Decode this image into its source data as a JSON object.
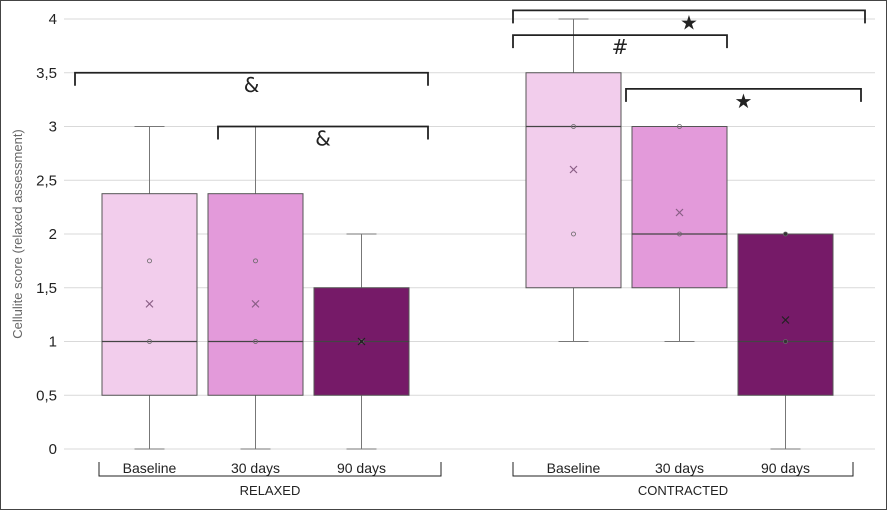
{
  "chart_data": {
    "type": "box",
    "ylabel": "Cellulite score (relaxed assessment)",
    "ylim": [
      0,
      4
    ],
    "y_ticks": [
      "0",
      "0,5",
      "1",
      "1,5",
      "2",
      "2,5",
      "3",
      "3,5",
      "4"
    ],
    "grid": true,
    "groups": [
      {
        "name": "RELAXED",
        "boxes": [
          {
            "label": "Baseline",
            "min": 0,
            "q1": 0.5,
            "median": 1,
            "q3": 2.375,
            "max": 3,
            "mean": 1.35,
            "points": [
              1,
              1.75
            ],
            "color": "#f2cdec"
          },
          {
            "label": "30 days",
            "min": 0,
            "q1": 0.5,
            "median": 1,
            "q3": 2.375,
            "max": 3,
            "mean": 1.35,
            "points": [
              1,
              1.75
            ],
            "color": "#e39ada"
          },
          {
            "label": "90 days",
            "min": 0,
            "q1": 0.5,
            "median": 1,
            "q3": 1.5,
            "max": 2,
            "mean": 1.0,
            "points": [
              1
            ],
            "color": "#761a68"
          }
        ]
      },
      {
        "name": "CONTRACTED",
        "boxes": [
          {
            "label": "Baseline",
            "min": 1,
            "q1": 1.5,
            "median": 3,
            "q3": 3.5,
            "max": 4,
            "mean": 2.6,
            "points": [
              2,
              3
            ],
            "color": "#f2cdec"
          },
          {
            "label": "30 days",
            "min": 1,
            "q1": 1.5,
            "median": 2,
            "q3": 3,
            "max": 3,
            "mean": 2.2,
            "points": [
              2,
              3
            ],
            "color": "#e39ada"
          },
          {
            "label": "90 days",
            "min": 0,
            "q1": 0.5,
            "median": 1,
            "q3": 2,
            "max": 2,
            "mean": 1.2,
            "points": [
              1,
              2
            ],
            "color": "#761a68"
          }
        ]
      }
    ],
    "annotations": [
      {
        "symbol": "&",
        "from": [
          0,
          0
        ],
        "to": [
          0,
          2
        ],
        "level": 3.5
      },
      {
        "symbol": "&",
        "from": [
          0,
          1
        ],
        "to": [
          0,
          2
        ],
        "level": 3.0
      },
      {
        "symbol": "#",
        "from": [
          1,
          0
        ],
        "to": [
          1,
          1
        ],
        "level": 3.85
      },
      {
        "symbol": "★",
        "from": [
          1,
          0
        ],
        "to": [
          1,
          2
        ],
        "level": 4.08
      },
      {
        "symbol": "★",
        "from": [
          1,
          1
        ],
        "to": [
          1,
          2
        ],
        "level": 3.35
      }
    ]
  }
}
